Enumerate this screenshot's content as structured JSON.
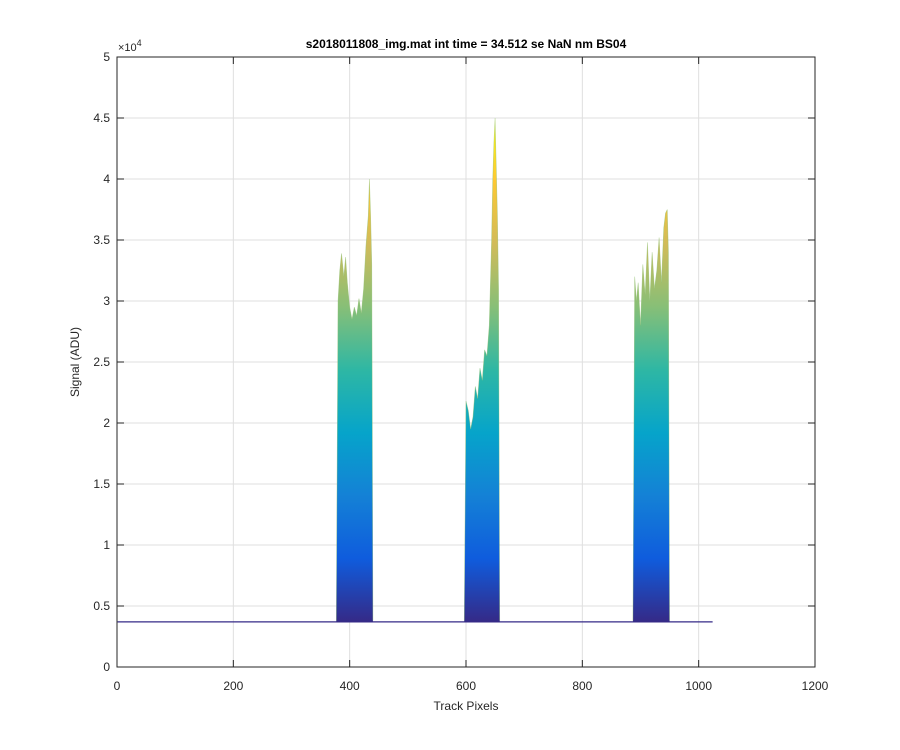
{
  "figure": {
    "background": "#ffffff",
    "axes_color": "#262626",
    "grid_color": "#dfdfdf"
  },
  "chart_data": {
    "type": "area",
    "title": "s2018011808_img.mat int time = 34.512 se  NaN nm BS04",
    "xlabel": "Track Pixels",
    "ylabel": "Signal (ADU)",
    "y_exponent_label": "×10",
    "y_exponent_power": "4",
    "xlim": [
      0,
      1200
    ],
    "ylim": [
      0,
      50000
    ],
    "grid": true,
    "colormap": "parula",
    "colormap_stops": [
      "#352a87",
      "#0f5cdd",
      "#1481d6",
      "#06a4ca",
      "#2eb7a4",
      "#87bf77",
      "#d1bb59",
      "#fec832",
      "#f9fb0e"
    ],
    "x_ticks": [
      0,
      200,
      400,
      600,
      800,
      1000,
      1200
    ],
    "x_tick_labels": [
      "0",
      "200",
      "400",
      "600",
      "800",
      "1000",
      "1200"
    ],
    "y_ticks": [
      0,
      5000,
      10000,
      15000,
      20000,
      25000,
      30000,
      35000,
      40000,
      45000,
      50000
    ],
    "y_tick_labels": [
      "0",
      "0.5",
      "1",
      "1.5",
      "2",
      "2.5",
      "3",
      "3.5",
      "4",
      "4.5",
      "5"
    ],
    "data_x_range": [
      1,
      1024
    ],
    "baseline": 3700,
    "peaks": [
      {
        "x": [
          377,
          380,
          383,
          386,
          390,
          393,
          396,
          400,
          404,
          408,
          412,
          416,
          420,
          424,
          428,
          432,
          434,
          436,
          438,
          440
        ],
        "y": [
          3800,
          30000,
          32500,
          33900,
          32000,
          33600,
          31500,
          29500,
          28500,
          29500,
          28800,
          30200,
          29000,
          31000,
          34500,
          37000,
          40000,
          37000,
          33000,
          3800
        ]
      },
      {
        "x": [
          597,
          600,
          604,
          608,
          612,
          616,
          620,
          624,
          628,
          632,
          636,
          640,
          644,
          646,
          648,
          650,
          652,
          654,
          656,
          658
        ],
        "y": [
          3800,
          21800,
          21000,
          19500,
          20500,
          23000,
          22000,
          24500,
          23500,
          26000,
          25500,
          28000,
          35000,
          40000,
          43000,
          45000,
          41000,
          37000,
          31000,
          3800
        ]
      },
      {
        "x": [
          887,
          890,
          893,
          896,
          900,
          904,
          908,
          912,
          916,
          920,
          924,
          928,
          932,
          936,
          940,
          943,
          946,
          948,
          950
        ],
        "y": [
          3800,
          32000,
          30000,
          31500,
          28000,
          33000,
          30500,
          34800,
          30000,
          34000,
          31000,
          32500,
          35200,
          31500,
          36000,
          37200,
          37500,
          34000,
          3800
        ]
      }
    ]
  }
}
